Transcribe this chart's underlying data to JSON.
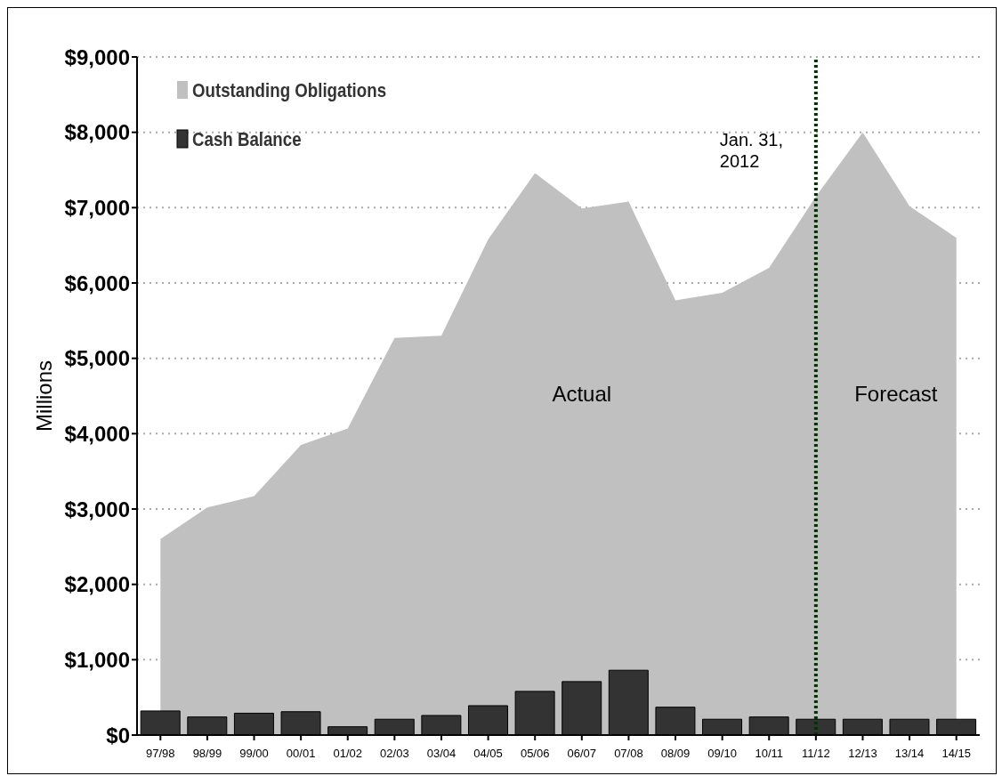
{
  "chart_data": {
    "type": "area",
    "ylabel": "Millions",
    "categories": [
      "97/98",
      "98/99",
      "99/00",
      "00/01",
      "01/02",
      "02/03",
      "03/04",
      "04/05",
      "05/06",
      "06/07",
      "07/08",
      "08/09",
      "09/10",
      "10/11",
      "11/12",
      "12/13",
      "13/14",
      "14/15"
    ],
    "series": [
      {
        "name": "Outstanding Obligations",
        "color": "#c0c0c0",
        "values": [
          2600,
          3020,
          3170,
          3850,
          4070,
          5270,
          5300,
          6580,
          7460,
          6990,
          7080,
          5770,
          5870,
          6200,
          7150,
          8000,
          7020,
          6600
        ]
      },
      {
        "name": "Cash Balance",
        "type": "bar",
        "color": "#333333",
        "values": [
          320,
          240,
          290,
          310,
          110,
          210,
          260,
          390,
          580,
          710,
          860,
          370,
          210,
          240,
          210,
          210,
          210,
          210
        ]
      }
    ],
    "ylim": [
      0,
      9000
    ],
    "yticks": [
      {
        "value": 0,
        "label": "$0"
      },
      {
        "value": 1000,
        "label": "$1,000"
      },
      {
        "value": 2000,
        "label": "$2,000"
      },
      {
        "value": 3000,
        "label": "$3,000"
      },
      {
        "value": 4000,
        "label": "$4,000"
      },
      {
        "value": 5000,
        "label": "$5,000"
      },
      {
        "value": 6000,
        "label": "$6,000"
      },
      {
        "value": 7000,
        "label": "$7,000"
      },
      {
        "value": 8000,
        "label": "$8,000"
      },
      {
        "value": 9000,
        "label": "$9,000"
      }
    ],
    "grid": "y",
    "legend": "top left",
    "ref_lines": [
      {
        "axis": "x",
        "value": "11/12",
        "label": "Jan. 31, 2012",
        "color": "#003300",
        "line_style": "dotted"
      }
    ],
    "annotations": [
      "Actual",
      "Forecast"
    ]
  }
}
